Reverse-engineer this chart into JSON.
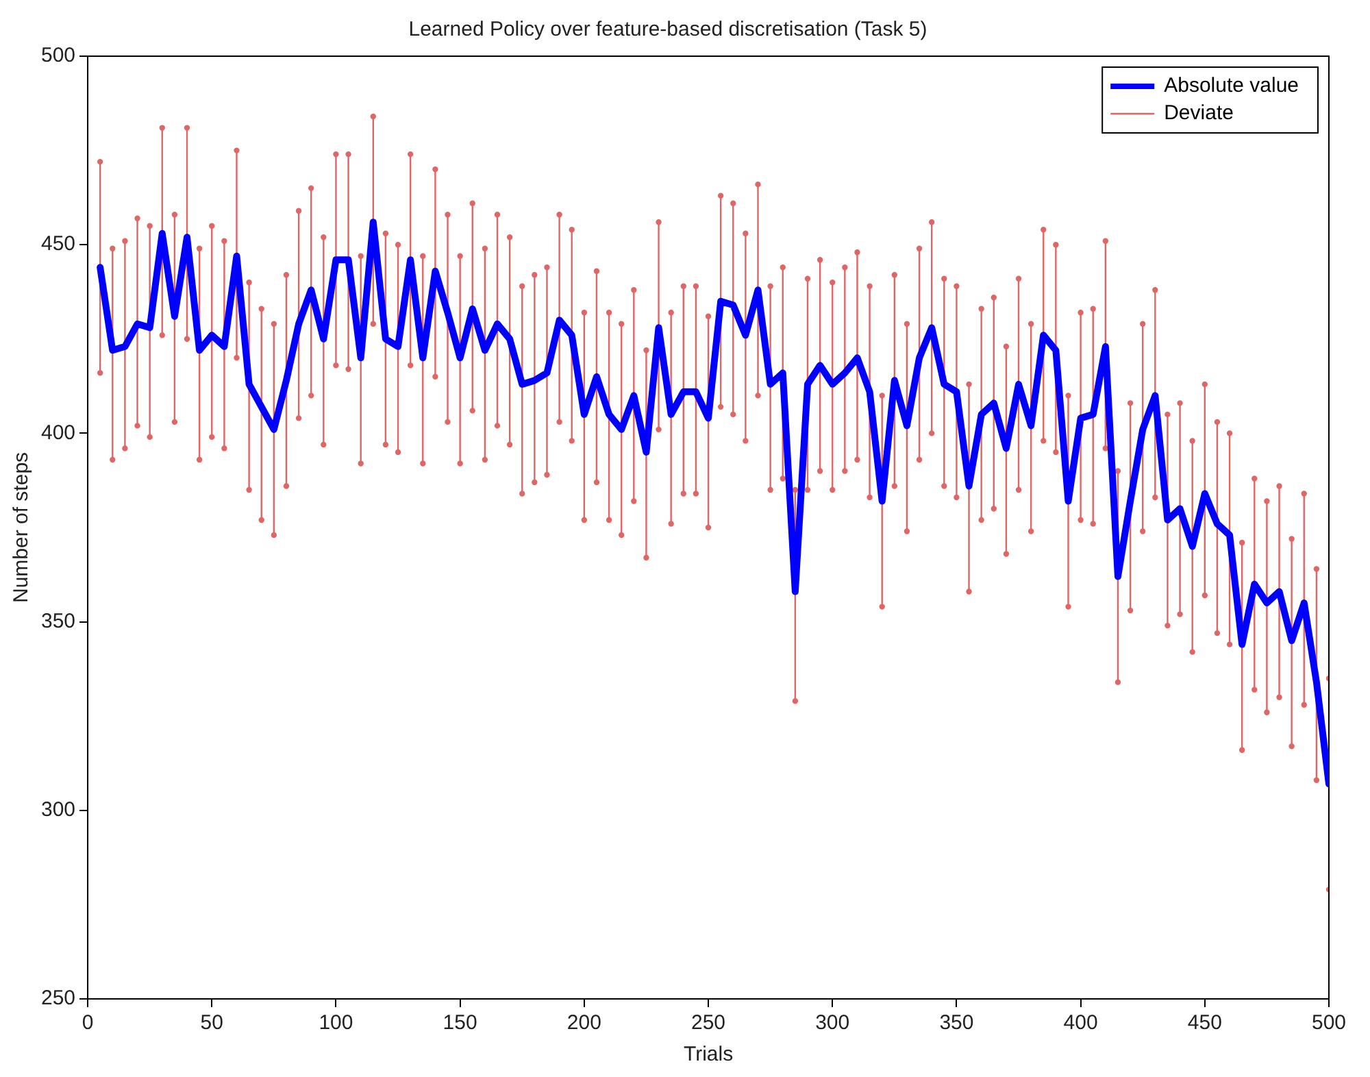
{
  "chart_data": {
    "type": "line",
    "title": "Learned Policy over feature-based discretisation (Task 5)",
    "xlabel": "Trials",
    "ylabel": "Number of steps",
    "x": [
      5,
      10,
      15,
      20,
      25,
      30,
      35,
      40,
      45,
      50,
      55,
      60,
      65,
      70,
      75,
      80,
      85,
      90,
      95,
      100,
      105,
      110,
      115,
      120,
      125,
      130,
      135,
      140,
      145,
      150,
      155,
      160,
      165,
      170,
      175,
      180,
      185,
      190,
      195,
      200,
      205,
      210,
      215,
      220,
      225,
      230,
      235,
      240,
      245,
      250,
      255,
      260,
      265,
      270,
      275,
      280,
      285,
      290,
      295,
      300,
      305,
      310,
      315,
      320,
      325,
      330,
      335,
      340,
      345,
      350,
      355,
      360,
      365,
      370,
      375,
      380,
      385,
      390,
      395,
      400,
      405,
      410,
      415,
      420,
      425,
      430,
      435,
      440,
      445,
      450,
      455,
      460,
      465,
      470,
      475,
      480,
      485,
      490,
      495,
      500
    ],
    "series": [
      {
        "name": "Absolute value",
        "color": "#0000ff",
        "values": [
          444,
          422,
          423,
          429,
          428,
          453,
          431,
          452,
          422,
          426,
          423,
          447,
          413,
          407,
          401,
          414,
          429,
          438,
          425,
          446,
          446,
          420,
          456,
          425,
          423,
          446,
          420,
          443,
          432,
          420,
          433,
          422,
          429,
          425,
          413,
          414,
          416,
          430,
          426,
          405,
          415,
          405,
          401,
          410,
          395,
          428,
          405,
          411,
          411,
          404,
          435,
          434,
          426,
          438,
          413,
          416,
          358,
          413,
          418,
          413,
          416,
          420,
          411,
          382,
          414,
          402,
          420,
          428,
          413,
          411,
          386,
          405,
          408,
          396,
          413,
          402,
          426,
          422,
          382,
          404,
          405,
          423,
          362,
          382,
          401,
          410,
          377,
          380,
          370,
          384,
          376,
          373,
          344,
          360,
          355,
          358,
          345,
          355,
          334,
          307
        ]
      },
      {
        "name": "Deviate",
        "color": "#e06666",
        "marker": "circle",
        "x": [
          5,
          5,
          10,
          10,
          15,
          15,
          20,
          20,
          25,
          25,
          30,
          30,
          35,
          35,
          40,
          40,
          45,
          45,
          50,
          50,
          55,
          55,
          60,
          60,
          65,
          65,
          70,
          70,
          75,
          75,
          80,
          80,
          85,
          85,
          90,
          90,
          95,
          95,
          100,
          100,
          105,
          105,
          110,
          110,
          115,
          115,
          120,
          120,
          125,
          125,
          130,
          130,
          135,
          135,
          140,
          140,
          145,
          145,
          150,
          150,
          155,
          155,
          160,
          160,
          165,
          165,
          170,
          170,
          175,
          175,
          180,
          180,
          185,
          185,
          190,
          190,
          195,
          195,
          200,
          200,
          205,
          205,
          210,
          210,
          215,
          215,
          220,
          220,
          225,
          225,
          230,
          230,
          235,
          235,
          240,
          240,
          245,
          245,
          250,
          250,
          255,
          255,
          260,
          260,
          265,
          265,
          270,
          270,
          275,
          275,
          280,
          280,
          285,
          285,
          290,
          290,
          295,
          295,
          300,
          300,
          305,
          305,
          310,
          310,
          315,
          315,
          320,
          320,
          325,
          325,
          330,
          330,
          335,
          335,
          340,
          340,
          345,
          345,
          350,
          350,
          355,
          355,
          360,
          360,
          365,
          365,
          370,
          370,
          375,
          375,
          380,
          380,
          385,
          385,
          390,
          390,
          395,
          395,
          400,
          400,
          405,
          405,
          410,
          410,
          415,
          415,
          420,
          420,
          425,
          425,
          430,
          430,
          435,
          435,
          440,
          440,
          445,
          445,
          450,
          450,
          455,
          455,
          460,
          460,
          465,
          465,
          470,
          470,
          475,
          475,
          480,
          480,
          485,
          485,
          490,
          490,
          495,
          495,
          500,
          500
        ],
        "values": [
          416,
          472,
          393,
          449,
          396,
          451,
          402,
          457,
          399,
          455,
          426,
          481,
          403,
          458,
          425,
          481,
          393,
          449,
          399,
          455,
          396,
          451,
          420,
          475,
          385,
          440,
          377,
          433,
          373,
          429,
          386,
          442,
          404,
          459,
          410,
          465,
          397,
          452,
          418,
          474,
          417,
          474,
          392,
          447,
          429,
          484,
          397,
          453,
          395,
          450,
          418,
          474,
          392,
          447,
          415,
          470,
          403,
          458,
          392,
          447,
          406,
          461,
          393,
          449,
          402,
          458,
          397,
          452,
          384,
          439,
          387,
          442,
          389,
          444,
          403,
          458,
          398,
          454,
          377,
          432,
          387,
          443,
          377,
          432,
          373,
          429,
          382,
          438,
          367,
          422,
          401,
          456,
          376,
          432,
          384,
          439,
          384,
          439,
          375,
          431,
          407,
          463,
          405,
          461,
          398,
          453,
          410,
          466,
          385,
          439,
          388,
          444,
          329,
          385,
          385,
          441,
          390,
          446,
          385,
          440,
          390,
          444,
          393,
          448,
          383,
          439,
          354,
          410,
          386,
          442,
          374,
          429,
          393,
          449,
          400,
          456,
          386,
          441,
          383,
          439,
          358,
          413,
          377,
          433,
          380,
          436,
          368,
          423,
          385,
          441,
          374,
          429,
          398,
          454,
          395,
          450,
          354,
          410,
          377,
          432,
          376,
          433,
          396,
          451,
          334,
          390,
          353,
          408,
          374,
          429,
          383,
          438,
          349,
          405,
          352,
          408,
          342,
          398,
          357,
          413,
          347,
          403,
          344,
          400,
          316,
          371,
          332,
          388,
          326,
          382,
          330,
          386,
          317,
          372,
          328,
          384,
          308,
          364,
          279,
          335
        ]
      }
    ],
    "xlim": [
      0,
      500
    ],
    "xticks": [
      0,
      50,
      100,
      150,
      200,
      250,
      300,
      350,
      400,
      450,
      500
    ],
    "ylim": [
      250,
      500
    ],
    "yticks": [
      250,
      300,
      350,
      400,
      450,
      500
    ],
    "legend": "top right",
    "marker": "none",
    "line_style": "solid",
    "grid": false
  }
}
